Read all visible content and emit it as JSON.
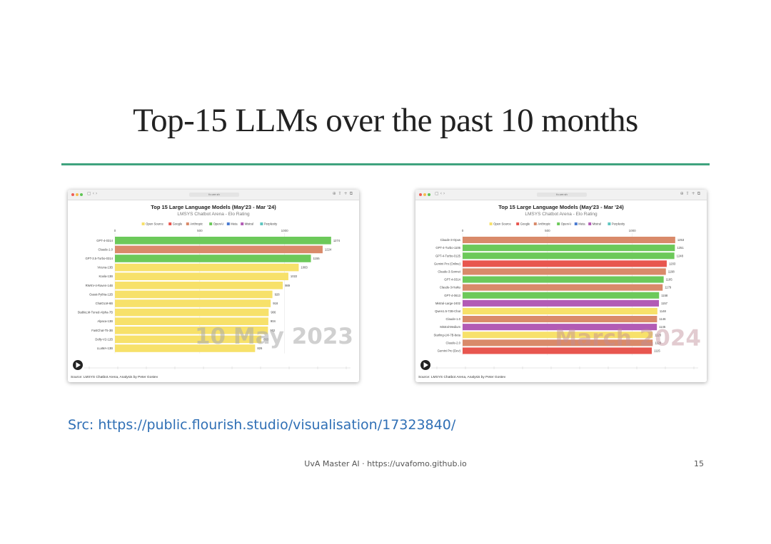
{
  "slide": {
    "title": "Top-15 LLMs over the past 10 months",
    "source_link": "Src: https://public.flourish.studio/visualisation/17323840/",
    "footer": "UvA Master AI · https://uvafomo.github.io",
    "page_number": "15"
  },
  "colors": {
    "Open Source": "#f7e16a",
    "Google": "#e8564f",
    "Anthropic": "#d98a6a",
    "OpenAI": "#6cc95a",
    "Meta": "#4a7bd0",
    "Mistral": "#b25bb5",
    "Perplexity": "#5ec6c0"
  },
  "browser": {
    "url": "fo.ure.sh"
  },
  "chart_data": [
    {
      "type": "bar",
      "title": "Top 15 Large Language Models (May'23 - Mar '24)",
      "subtitle": "LMSYS Chatbot Arena - Elo Rating",
      "legend": [
        "Open Source",
        "Google",
        "Anthropic",
        "OpenAI",
        "Meta",
        "Mistral",
        "Perplexity"
      ],
      "xticks": [
        0,
        500,
        1000
      ],
      "xlim": [
        0,
        1300
      ],
      "date_label": "10 May 2023",
      "source": "Source: LMSYS Chatbot Arena, Analysis by Peter Gostev",
      "categories": [
        "GPT-4-0314",
        "Claude-1.0",
        "GPT-3.5-Turbo-0314",
        "Vicuna-13B",
        "Koala-13B",
        "RWKV-4-Raven-14B",
        "Oasst-Pythia-12B",
        "ChatGLM-6B",
        "StableLM-Tuned-Alpha-7B",
        "Alpaca-13B",
        "FastChat-T5-3B",
        "Dolly-V2-12B",
        "LLaMA-13B"
      ],
      "values": [
        1274,
        1224,
        1155,
        1083,
        1022,
        989,
        928,
        918,
        906,
        904,
        902,
        863,
        826
      ],
      "groups": [
        "OpenAI",
        "Anthropic",
        "OpenAI",
        "Open Source",
        "Open Source",
        "Open Source",
        "Open Source",
        "Open Source",
        "Open Source",
        "Open Source",
        "Open Source",
        "Open Source",
        "Open Source"
      ],
      "value_labels": [
        "1274",
        "1224",
        "1155",
        "1083",
        "1022",
        "989",
        "928",
        "918",
        "906",
        "904",
        "902",
        "863",
        "826"
      ]
    },
    {
      "type": "bar",
      "title": "Top 15 Large Language Models (May'23 - Mar '24)",
      "subtitle": "LMSYS Chatbot Arena - Elo Rating",
      "legend": [
        "Open Source",
        "Google",
        "Anthropic",
        "OpenAI",
        "Meta",
        "Mistral",
        "Perplexity"
      ],
      "xticks": [
        0,
        500,
        1000
      ],
      "xlim": [
        0,
        1300
      ],
      "date_label": "March 2024",
      "source": "Source: LMSYS Chatbot Arena, Analysis by Peter Gostev",
      "categories": [
        "Claude-3-Opus",
        "GPT-4-Turbo-1106",
        "GPT-4-Turbo-0125",
        "Gemini Pro (Online)",
        "Claude-3-Sonnet",
        "GPT-4-0314",
        "Claude-3-Haiku",
        "GPT-4-0613",
        "Mistral-Large-2402",
        "Qwen1.5-72B-Chat",
        "Claude-1.0",
        "Mistral-Medium",
        "Starling-LM-7B-beta",
        "Claude-2.0",
        "Gemini Pro (Dev)"
      ],
      "values": [
        1253,
        1251,
        1248,
        1203,
        1198,
        1185,
        1179,
        1158,
        1157,
        1148,
        1146,
        1145,
        1120,
        1120,
        1115
      ],
      "groups": [
        "Anthropic",
        "OpenAI",
        "OpenAI",
        "Google",
        "Anthropic",
        "OpenAI",
        "Anthropic",
        "OpenAI",
        "Mistral",
        "Open Source",
        "Anthropic",
        "Mistral",
        "Open Source",
        "Anthropic",
        "Google"
      ],
      "value_labels": [
        "1253",
        "1251",
        "1248",
        "1203",
        "1198",
        "1185",
        "1179",
        "1158",
        "1157",
        "1148",
        "1146",
        "1145",
        "1120",
        "1120",
        "1115"
      ]
    }
  ]
}
